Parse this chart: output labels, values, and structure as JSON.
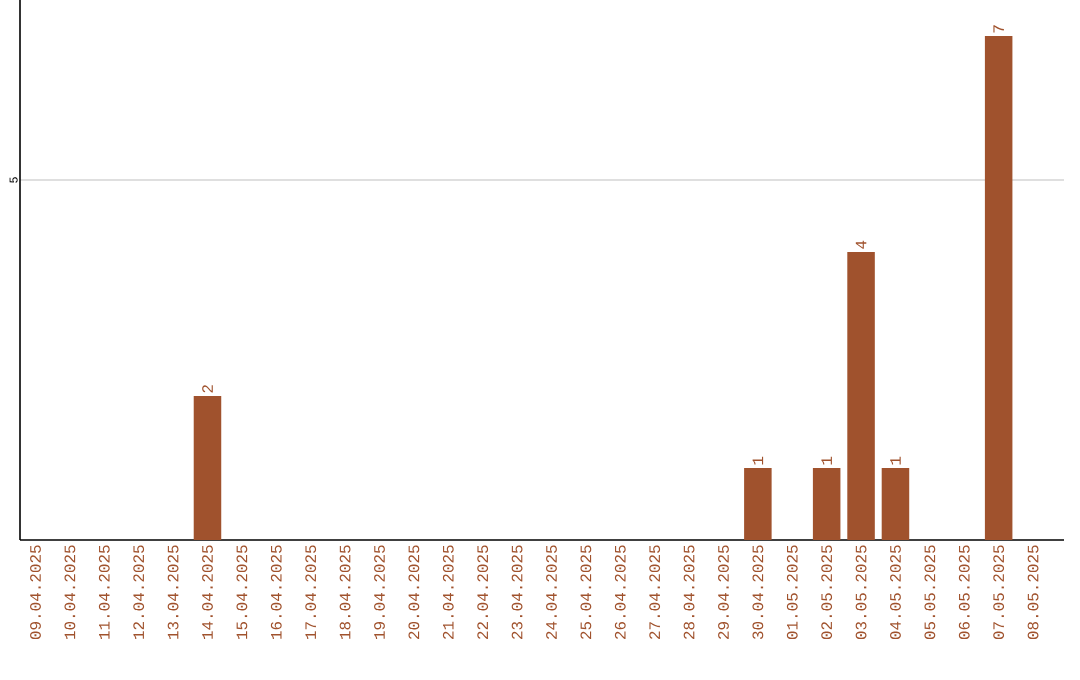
{
  "chart_data": {
    "type": "bar",
    "categories": [
      "09.04.2025",
      "10.04.2025",
      "11.04.2025",
      "12.04.2025",
      "13.04.2025",
      "14.04.2025",
      "15.04.2025",
      "16.04.2025",
      "17.04.2025",
      "18.04.2025",
      "19.04.2025",
      "20.04.2025",
      "21.04.2025",
      "22.04.2025",
      "23.04.2025",
      "24.04.2025",
      "25.04.2025",
      "26.04.2025",
      "27.04.2025",
      "28.04.2025",
      "29.04.2025",
      "30.04.2025",
      "01.05.2025",
      "02.05.2025",
      "03.05.2025",
      "04.05.2025",
      "05.05.2025",
      "06.05.2025",
      "07.05.2025",
      "08.05.2025"
    ],
    "values": [
      0,
      0,
      0,
      0,
      0,
      2,
      0,
      0,
      0,
      0,
      0,
      0,
      0,
      0,
      0,
      0,
      0,
      0,
      0,
      0,
      0,
      1,
      0,
      1,
      4,
      1,
      0,
      0,
      7,
      0
    ],
    "value_labels": [
      null,
      null,
      null,
      null,
      null,
      "2",
      null,
      null,
      null,
      null,
      null,
      null,
      null,
      null,
      null,
      null,
      null,
      null,
      null,
      null,
      null,
      "1",
      null,
      "1",
      "4",
      "1",
      null,
      null,
      "7",
      null
    ],
    "color": "#a0522d",
    "ylim": [
      0,
      7.5
    ],
    "yticks": [
      5
    ],
    "grid": "y"
  }
}
